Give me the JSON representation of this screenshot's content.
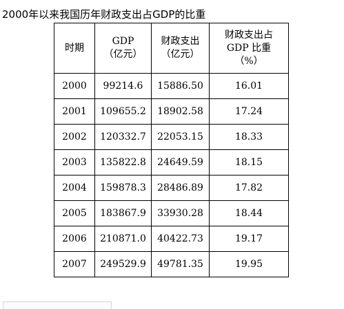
{
  "caption": "2000年以来我国历年财政支出占GDP的比重",
  "table": {
    "headers": [
      {
        "line1": "时期",
        "line2": "",
        "line3": ""
      },
      {
        "line1": "GDP",
        "line2": "（亿元）",
        "line3": ""
      },
      {
        "line1": "财政支出",
        "line2": "（亿元）",
        "line3": ""
      },
      {
        "line1": "财政支出占",
        "line2": "GDP 比重",
        "line3": "（%）"
      }
    ],
    "rows": [
      [
        "2000",
        "99214.6",
        "15886.50",
        "16.01"
      ],
      [
        "2001",
        "109655.2",
        "18902.58",
        "17.24"
      ],
      [
        "2002",
        "120332.7",
        "22053.15",
        "18.33"
      ],
      [
        "2003",
        "135822.8",
        "24649.59",
        "18.15"
      ],
      [
        "2004",
        "159878.3",
        "28486.89",
        "17.82"
      ],
      [
        "2005",
        "183867.9",
        "33930.28",
        "18.44"
      ],
      [
        "2006",
        "210871.0",
        "40422.73",
        "19.17"
      ],
      [
        "2007",
        "249529.9",
        "49781.35",
        "19.95"
      ]
    ]
  }
}
